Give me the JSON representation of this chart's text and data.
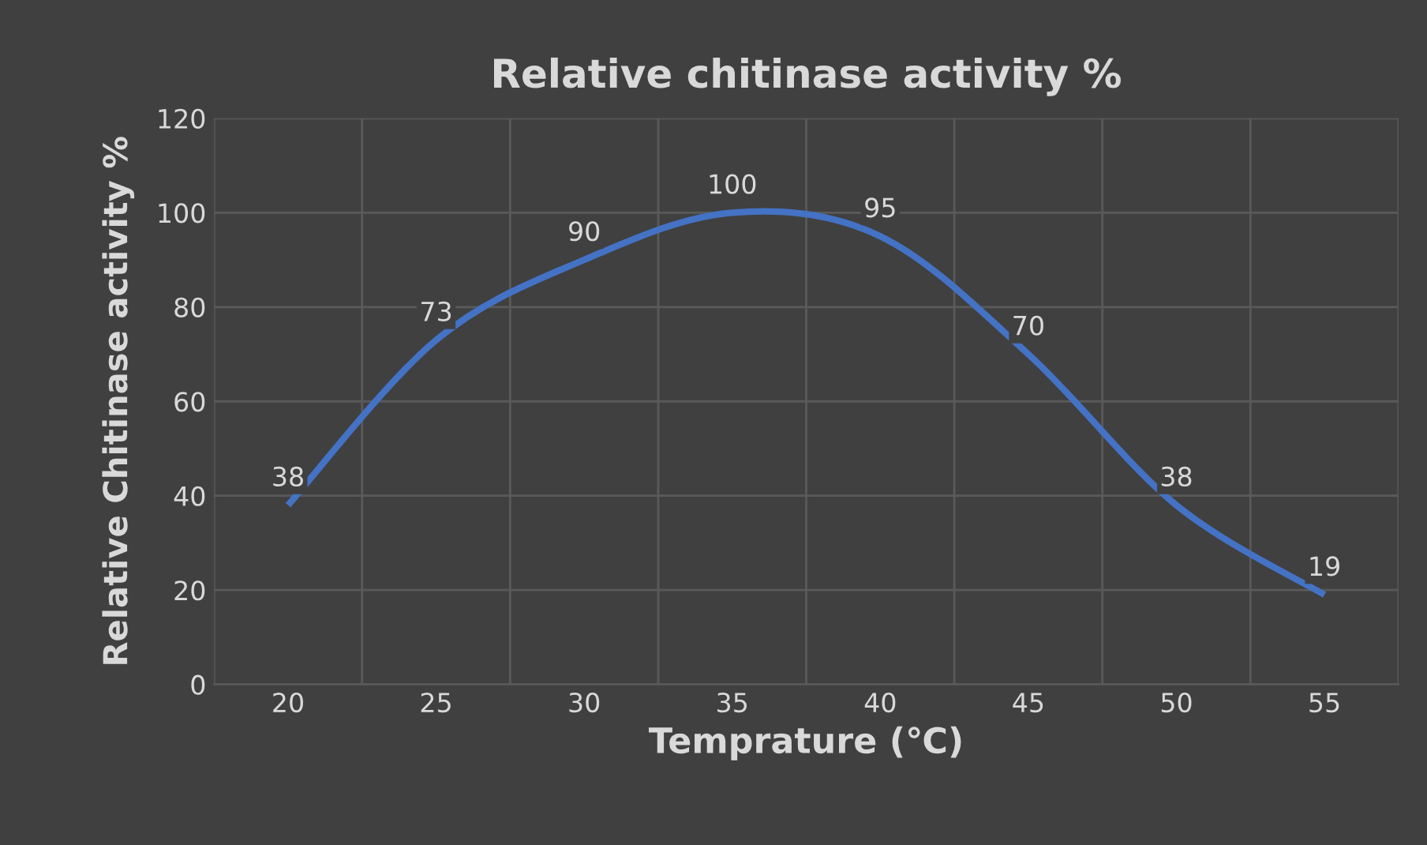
{
  "chart_data": {
    "type": "line",
    "title": "Relative chitinase activity %",
    "xlabel": "Temprature (℃)",
    "ylabel": "Relative Chitinase activity %",
    "categories": [
      "20",
      "25",
      "30",
      "35",
      "40",
      "45",
      "50",
      "55"
    ],
    "series": [
      {
        "color": "#4472c4",
        "values": [
          38,
          73,
          90,
          100,
          95,
          70,
          38,
          19
        ]
      }
    ],
    "ylim": [
      0,
      120
    ],
    "yticks": [
      0,
      20,
      40,
      60,
      80,
      100,
      120
    ],
    "grid": true,
    "data_labels": true,
    "marker": "none",
    "line_style": "solid",
    "legend": false
  }
}
